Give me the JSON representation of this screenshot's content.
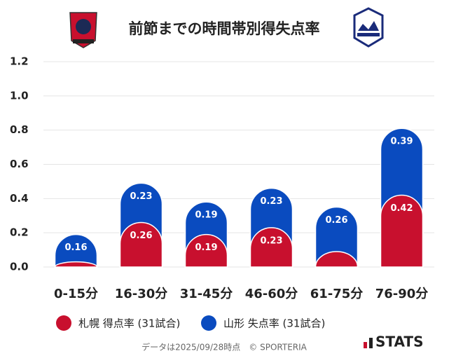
{
  "chart_data": {
    "type": "stacked_bar",
    "title": "前節までの時間帯別得失点率",
    "categories": [
      "0-15分",
      "16-30分",
      "31-45分",
      "46-60分",
      "61-75分",
      "76-90分"
    ],
    "series": [
      {
        "name": "札幌 得点率 (31試合)",
        "color": "#c8102e",
        "values": [
          0.03,
          0.26,
          0.19,
          0.23,
          0.09,
          0.42
        ],
        "value_labels": [
          null,
          "0.26",
          "0.19",
          "0.23",
          null,
          "0.42"
        ]
      },
      {
        "name": "山形 失点率 (31試合)",
        "color": "#0a4bbf",
        "values": [
          0.16,
          0.23,
          0.19,
          0.23,
          0.26,
          0.39
        ],
        "value_labels": [
          "0.16",
          "0.23",
          "0.19",
          "0.23",
          "0.26",
          "0.39"
        ]
      }
    ],
    "ylim": [
      0,
      1.2
    ],
    "yticks": [
      {
        "value": 0,
        "label": "0.0"
      },
      0.2,
      0.4,
      0.6,
      0.8,
      {
        "value": 1,
        "label": "1.0"
      },
      1.2
    ],
    "grid": true,
    "footer": "データは2025/09/28時点　© SPORTERIA",
    "brand": "STATS"
  }
}
